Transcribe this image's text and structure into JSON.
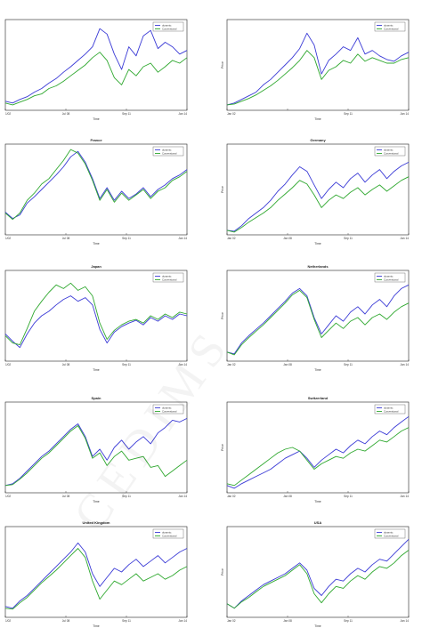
{
  "colors": {
    "dynamic": "#3a3ad6",
    "conventional": "#2fa82f",
    "grid_axis": "#222222"
  },
  "chart_data": [
    {
      "type": "line",
      "title": "",
      "ylabel": "",
      "xlabel": "Time",
      "xticks": [
        "1/02",
        "Jul 08",
        "Sep 11",
        "Jan 14"
      ],
      "legend": [
        "dynamic",
        "Conventional"
      ],
      "legend_position": "top-right",
      "series": [
        {
          "name": "dynamic",
          "values": [
            0.1,
            0.08,
            0.12,
            0.15,
            0.2,
            0.24,
            0.3,
            0.35,
            0.42,
            0.48,
            0.55,
            0.62,
            0.7,
            0.9,
            0.84,
            0.62,
            0.45,
            0.7,
            0.6,
            0.82,
            0.88,
            0.68,
            0.75,
            0.7,
            0.62,
            0.66
          ]
        },
        {
          "name": "Conventional",
          "values": [
            0.08,
            0.06,
            0.09,
            0.12,
            0.16,
            0.18,
            0.24,
            0.27,
            0.32,
            0.38,
            0.44,
            0.5,
            0.58,
            0.64,
            0.55,
            0.36,
            0.28,
            0.45,
            0.38,
            0.48,
            0.52,
            0.42,
            0.48,
            0.55,
            0.52,
            0.58
          ]
        }
      ]
    },
    {
      "type": "line",
      "title": "",
      "ylabel": "Price",
      "xlabel": "Time",
      "xticks": [
        "Jan 02",
        "",
        "Sep 11",
        "Jan 14"
      ],
      "legend": [
        "dynamic",
        "Conventional"
      ],
      "legend_position": "top-right",
      "series": [
        {
          "name": "dynamic",
          "values": [
            0.06,
            0.08,
            0.12,
            0.16,
            0.2,
            0.28,
            0.34,
            0.42,
            0.5,
            0.58,
            0.68,
            0.85,
            0.72,
            0.4,
            0.55,
            0.62,
            0.7,
            0.66,
            0.8,
            0.62,
            0.66,
            0.6,
            0.56,
            0.54,
            0.6,
            0.64
          ]
        },
        {
          "name": "Conventional",
          "values": [
            0.06,
            0.07,
            0.1,
            0.13,
            0.17,
            0.22,
            0.27,
            0.33,
            0.4,
            0.47,
            0.55,
            0.66,
            0.58,
            0.34,
            0.44,
            0.48,
            0.55,
            0.52,
            0.62,
            0.54,
            0.58,
            0.55,
            0.52,
            0.52,
            0.56,
            0.58
          ]
        }
      ]
    },
    {
      "type": "line",
      "title": "France",
      "ylabel": "",
      "xlabel": "Time",
      "xticks": [
        "1/02",
        "Jul 08",
        "Sep 11",
        "Jan 14"
      ],
      "legend": [
        "dynamic",
        "Conventional"
      ],
      "legend_position": "top-right",
      "series": [
        {
          "name": "dynamic",
          "values": [
            0.25,
            0.18,
            0.22,
            0.35,
            0.42,
            0.5,
            0.58,
            0.66,
            0.75,
            0.86,
            0.92,
            0.8,
            0.62,
            0.4,
            0.52,
            0.38,
            0.48,
            0.4,
            0.45,
            0.52,
            0.42,
            0.5,
            0.55,
            0.62,
            0.66,
            0.72
          ]
        },
        {
          "name": "Conventional",
          "values": [
            0.24,
            0.17,
            0.24,
            0.38,
            0.46,
            0.56,
            0.62,
            0.72,
            0.82,
            0.94,
            0.9,
            0.78,
            0.6,
            0.38,
            0.5,
            0.36,
            0.46,
            0.38,
            0.44,
            0.5,
            0.4,
            0.48,
            0.52,
            0.6,
            0.64,
            0.7
          ]
        }
      ]
    },
    {
      "type": "line",
      "title": "Germany",
      "ylabel": "Price",
      "xlabel": "Time",
      "xticks": [
        "Jan 02",
        "Jan 08",
        "Sep 11",
        "Jan 14"
      ],
      "legend": [
        "dynamic",
        "Conventional"
      ],
      "legend_position": "top-right",
      "series": [
        {
          "name": "dynamic",
          "values": [
            0.05,
            0.04,
            0.1,
            0.18,
            0.24,
            0.3,
            0.38,
            0.48,
            0.56,
            0.66,
            0.75,
            0.7,
            0.55,
            0.4,
            0.5,
            0.58,
            0.52,
            0.62,
            0.68,
            0.58,
            0.66,
            0.72,
            0.62,
            0.7,
            0.76,
            0.8
          ]
        },
        {
          "name": "Conventional",
          "values": [
            0.05,
            0.03,
            0.08,
            0.14,
            0.19,
            0.24,
            0.3,
            0.38,
            0.45,
            0.52,
            0.6,
            0.56,
            0.44,
            0.3,
            0.38,
            0.44,
            0.4,
            0.47,
            0.52,
            0.44,
            0.5,
            0.55,
            0.48,
            0.54,
            0.6,
            0.64
          ]
        }
      ]
    },
    {
      "type": "line",
      "title": "Japan",
      "ylabel": "",
      "xlabel": "Time",
      "xticks": [
        "1/02",
        "Jul 08",
        "Sep 11",
        "Jan 14"
      ],
      "legend": [
        "dynamic",
        "Conventional"
      ],
      "legend_position": "top-right",
      "series": [
        {
          "name": "dynamic",
          "values": [
            0.3,
            0.22,
            0.15,
            0.3,
            0.42,
            0.5,
            0.55,
            0.62,
            0.68,
            0.72,
            0.66,
            0.7,
            0.62,
            0.35,
            0.2,
            0.32,
            0.38,
            0.42,
            0.45,
            0.4,
            0.48,
            0.44,
            0.5,
            0.46,
            0.52,
            0.5
          ]
        },
        {
          "name": "Conventional",
          "values": [
            0.28,
            0.2,
            0.18,
            0.36,
            0.55,
            0.66,
            0.76,
            0.84,
            0.8,
            0.86,
            0.78,
            0.82,
            0.72,
            0.42,
            0.24,
            0.34,
            0.4,
            0.44,
            0.46,
            0.42,
            0.5,
            0.46,
            0.52,
            0.48,
            0.54,
            0.52
          ]
        }
      ]
    },
    {
      "type": "line",
      "title": "Netherlands",
      "ylabel": "Price",
      "xlabel": "Time",
      "xticks": [
        "Jan 02",
        "Jan 08",
        "Sep 11",
        "Jan 14"
      ],
      "legend": [
        "dynamic",
        "Conventional"
      ],
      "legend_position": "top-right",
      "series": [
        {
          "name": "dynamic",
          "values": [
            0.1,
            0.08,
            0.2,
            0.28,
            0.35,
            0.42,
            0.5,
            0.58,
            0.66,
            0.75,
            0.8,
            0.72,
            0.48,
            0.3,
            0.4,
            0.5,
            0.44,
            0.54,
            0.6,
            0.52,
            0.62,
            0.68,
            0.6,
            0.72,
            0.8,
            0.84
          ]
        },
        {
          "name": "Conventional",
          "values": [
            0.1,
            0.07,
            0.18,
            0.26,
            0.33,
            0.4,
            0.48,
            0.56,
            0.64,
            0.73,
            0.78,
            0.7,
            0.46,
            0.26,
            0.34,
            0.42,
            0.36,
            0.44,
            0.48,
            0.4,
            0.48,
            0.52,
            0.46,
            0.54,
            0.6,
            0.64
          ]
        }
      ]
    },
    {
      "type": "line",
      "title": "Spain",
      "ylabel": "",
      "xlabel": "Time",
      "xticks": [
        "1/02",
        "Jul 08",
        "Sep 11",
        "Jan 14"
      ],
      "legend": [
        "dynamic",
        "Conventional"
      ],
      "legend_position": "top-right",
      "series": [
        {
          "name": "dynamic",
          "values": [
            0.08,
            0.1,
            0.16,
            0.24,
            0.32,
            0.4,
            0.46,
            0.54,
            0.62,
            0.7,
            0.76,
            0.62,
            0.4,
            0.48,
            0.36,
            0.5,
            0.58,
            0.48,
            0.56,
            0.62,
            0.54,
            0.66,
            0.72,
            0.8,
            0.78,
            0.82
          ]
        },
        {
          "name": "Conventional",
          "values": [
            0.08,
            0.09,
            0.15,
            0.22,
            0.3,
            0.38,
            0.44,
            0.52,
            0.6,
            0.68,
            0.74,
            0.6,
            0.38,
            0.44,
            0.3,
            0.4,
            0.46,
            0.36,
            0.38,
            0.4,
            0.28,
            0.3,
            0.18,
            0.24,
            0.3,
            0.36
          ]
        }
      ]
    },
    {
      "type": "line",
      "title": "Switzerland",
      "ylabel": "Price",
      "xlabel": "Time",
      "xticks": [
        "Jan 02",
        "Jan 08",
        "Sep 11",
        "Jan 14"
      ],
      "legend": [
        "dynamic",
        "Conventional"
      ],
      "legend_position": "top-right",
      "series": [
        {
          "name": "dynamic",
          "values": [
            0.08,
            0.05,
            0.1,
            0.14,
            0.18,
            0.22,
            0.26,
            0.32,
            0.38,
            0.42,
            0.46,
            0.38,
            0.28,
            0.36,
            0.42,
            0.48,
            0.44,
            0.52,
            0.58,
            0.54,
            0.62,
            0.68,
            0.64,
            0.72,
            0.78,
            0.84
          ]
        },
        {
          "name": "Conventional",
          "values": [
            0.1,
            0.08,
            0.14,
            0.2,
            0.26,
            0.32,
            0.38,
            0.44,
            0.48,
            0.5,
            0.46,
            0.36,
            0.26,
            0.32,
            0.36,
            0.4,
            0.38,
            0.44,
            0.48,
            0.46,
            0.52,
            0.58,
            0.56,
            0.62,
            0.68,
            0.72
          ]
        }
      ]
    },
    {
      "type": "line",
      "title": "United Kingdom",
      "ylabel": "",
      "xlabel": "Time",
      "xticks": [
        "1/02",
        "Jul 08",
        "Sep 11",
        "Jan 14"
      ],
      "legend": [
        "dynamic",
        "Conventional"
      ],
      "legend_position": "top-right",
      "series": [
        {
          "name": "dynamic",
          "values": [
            0.12,
            0.1,
            0.18,
            0.24,
            0.32,
            0.4,
            0.48,
            0.56,
            0.64,
            0.72,
            0.82,
            0.72,
            0.48,
            0.34,
            0.44,
            0.54,
            0.5,
            0.58,
            0.64,
            0.56,
            0.62,
            0.68,
            0.6,
            0.66,
            0.72,
            0.76
          ]
        },
        {
          "name": "Conventional",
          "values": [
            0.1,
            0.09,
            0.16,
            0.22,
            0.3,
            0.38,
            0.45,
            0.52,
            0.6,
            0.68,
            0.76,
            0.66,
            0.4,
            0.2,
            0.3,
            0.4,
            0.36,
            0.42,
            0.48,
            0.4,
            0.44,
            0.48,
            0.42,
            0.46,
            0.52,
            0.56
          ]
        }
      ]
    },
    {
      "type": "line",
      "title": "USA",
      "ylabel": "Price",
      "xlabel": "Time",
      "xticks": [
        "Jan 02",
        "Jan 08",
        "Sep 11",
        "Jan 14"
      ],
      "legend": [
        "dynamic",
        "Conventional"
      ],
      "legend_position": "top-right",
      "series": [
        {
          "name": "dynamic",
          "values": [
            0.15,
            0.1,
            0.18,
            0.24,
            0.3,
            0.36,
            0.4,
            0.44,
            0.48,
            0.54,
            0.6,
            0.52,
            0.32,
            0.24,
            0.34,
            0.42,
            0.4,
            0.48,
            0.54,
            0.5,
            0.58,
            0.64,
            0.62,
            0.7,
            0.78,
            0.86
          ]
        },
        {
          "name": "Conventional",
          "values": [
            0.15,
            0.1,
            0.17,
            0.22,
            0.28,
            0.34,
            0.38,
            0.42,
            0.46,
            0.52,
            0.58,
            0.48,
            0.26,
            0.16,
            0.26,
            0.34,
            0.32,
            0.4,
            0.46,
            0.42,
            0.5,
            0.56,
            0.54,
            0.6,
            0.68,
            0.74
          ]
        }
      ]
    }
  ]
}
